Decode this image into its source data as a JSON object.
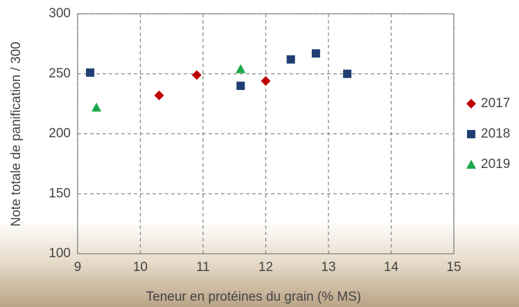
{
  "chart_data": {
    "type": "scatter",
    "xlabel": "Teneur en protéines du grain (% MS)",
    "ylabel": "Note totale de panification / 300",
    "xlim": [
      9,
      15
    ],
    "xticks": [
      9,
      10,
      11,
      12,
      13,
      14,
      15
    ],
    "ylim": [
      100,
      300
    ],
    "yticks": [
      100,
      150,
      200,
      250,
      300
    ],
    "grid": true,
    "legend": "right",
    "series": [
      {
        "name": "2017",
        "color": "#c00000",
        "marker": "diamond",
        "x": [
          10.3,
          10.9,
          12.0
        ],
        "values": [
          232,
          249,
          244
        ]
      },
      {
        "name": "2018",
        "color": "#1f3f74",
        "marker": "square",
        "x": [
          9.2,
          11.6,
          12.4,
          12.8,
          13.3
        ],
        "values": [
          251,
          240,
          262,
          267,
          250
        ]
      },
      {
        "name": "2019",
        "color": "#1aa84a",
        "marker": "triangle",
        "x": [
          9.3,
          11.6
        ],
        "values": [
          222,
          254
        ]
      }
    ]
  }
}
